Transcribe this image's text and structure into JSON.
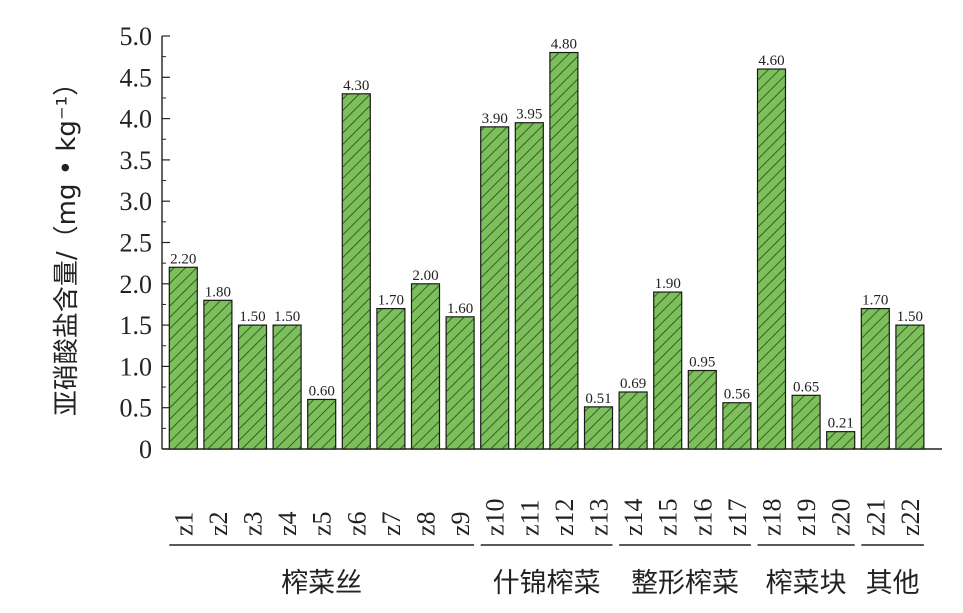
{
  "chart_data": {
    "type": "bar",
    "categories": [
      "z1",
      "z2",
      "z3",
      "z4",
      "z5",
      "z6",
      "z7",
      "z8",
      "z9",
      "z10",
      "z11",
      "z12",
      "z13",
      "z14",
      "z15",
      "z16",
      "z17",
      "z18",
      "z19",
      "z20",
      "z21",
      "z22"
    ],
    "values": [
      2.2,
      1.8,
      1.5,
      1.5,
      0.6,
      4.3,
      1.7,
      2.0,
      1.6,
      3.9,
      3.95,
      4.8,
      0.51,
      0.69,
      1.9,
      0.95,
      0.56,
      4.6,
      0.65,
      0.21,
      1.7,
      1.5
    ],
    "value_labels": [
      "2.20",
      "1.80",
      "1.50",
      "1.50",
      "0.60",
      "4.30",
      "1.70",
      "2.00",
      "1.60",
      "3.90",
      "3.95",
      "4.80",
      "0.51",
      "0.69",
      "1.90",
      "0.95",
      "0.56",
      "4.60",
      "0.65",
      "0.21",
      "1.70",
      "1.50"
    ],
    "ylabel": "亚硝酸盐含量/（mg • kg⁻¹）",
    "xlabel": "",
    "title": "",
    "ylim": [
      0,
      5.0
    ],
    "yticks": [
      "0",
      "0.5",
      "1.0",
      "1.5",
      "2.0",
      "2.5",
      "3.0",
      "3.5",
      "4.0",
      "4.5",
      "5.0"
    ],
    "groups": [
      {
        "label": "榨菜丝",
        "start": 0,
        "end": 8
      },
      {
        "label": "什锦榨菜",
        "start": 9,
        "end": 12
      },
      {
        "label": "整形榨菜",
        "start": 13,
        "end": 16
      },
      {
        "label": "榨菜块",
        "start": 17,
        "end": 19
      },
      {
        "label": "其他",
        "start": 20,
        "end": 21
      }
    ],
    "bar_color": "#7dbf5c",
    "hatch_color": "#1f4a12",
    "grid": false,
    "legend": "none"
  }
}
